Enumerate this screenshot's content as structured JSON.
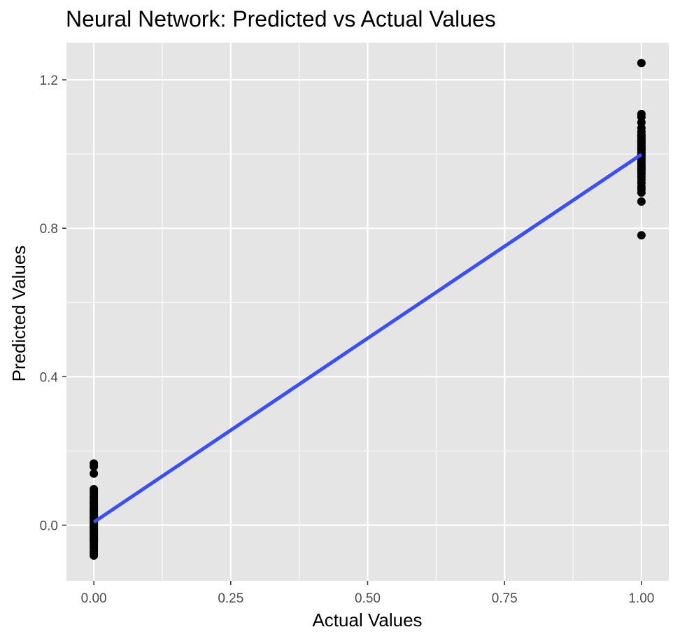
{
  "chart_data": {
    "type": "scatter",
    "title": "Neural Network: Predicted vs Actual Values",
    "xlabel": "Actual Values",
    "ylabel": "Predicted Values",
    "xlim": [
      -0.05,
      1.05
    ],
    "ylim": [
      -0.15,
      1.3
    ],
    "x_ticks": [
      0.0,
      0.25,
      0.5,
      0.75,
      1.0
    ],
    "x_tick_labels": [
      "0.00",
      "0.25",
      "0.50",
      "0.75",
      "1.00"
    ],
    "y_ticks": [
      0.0,
      0.4,
      0.8,
      1.2
    ],
    "y_tick_labels": [
      "0.0",
      "0.4",
      "0.8",
      "1.2"
    ],
    "grid": true,
    "legend": "none",
    "colors": {
      "panel": "#e5e5e5",
      "grid": "#ffffff",
      "points": "#000000",
      "fit_line": "#3a4efc",
      "tick_label": "#4d4d4d"
    },
    "series": [
      {
        "kind": "points",
        "x": [
          0,
          0,
          0,
          0,
          0,
          0,
          0,
          0,
          0,
          0,
          0,
          0,
          0,
          0,
          0,
          0,
          0,
          0,
          0,
          0,
          0,
          0,
          0,
          0,
          0,
          0,
          0,
          0,
          0,
          0,
          0,
          0,
          0,
          0,
          0,
          0,
          0,
          0,
          0,
          0,
          0,
          0,
          0,
          0,
          0,
          0,
          0,
          0,
          1,
          1,
          1,
          1,
          1,
          1,
          1,
          1,
          1,
          1,
          1,
          1,
          1,
          1,
          1,
          1,
          1,
          1,
          1,
          1,
          1,
          1,
          1,
          1,
          1,
          1,
          1,
          1,
          1,
          1,
          1,
          1,
          1,
          1,
          1,
          1,
          1,
          1,
          1,
          1,
          1,
          1
        ],
        "y": [
          0.166,
          0.158,
          0.139,
          0.097,
          0.091,
          0.085,
          0.078,
          0.072,
          0.066,
          0.06,
          0.055,
          0.05,
          0.046,
          0.042,
          0.038,
          0.034,
          0.03,
          0.026,
          0.022,
          0.018,
          0.014,
          0.01,
          0.006,
          0.002,
          -0.002,
          -0.006,
          -0.01,
          -0.014,
          -0.018,
          -0.022,
          -0.026,
          -0.03,
          -0.034,
          -0.038,
          -0.042,
          -0.047,
          -0.052,
          -0.058,
          -0.063,
          -0.07,
          -0.076,
          -0.082,
          0.0,
          0.02,
          0.04,
          0.06,
          -0.02,
          -0.04,
          1.245,
          1.108,
          1.1,
          1.085,
          1.07,
          1.06,
          1.052,
          1.045,
          1.04,
          1.035,
          1.03,
          1.025,
          1.02,
          1.015,
          1.01,
          1.005,
          1.0,
          0.995,
          0.99,
          0.985,
          0.98,
          0.975,
          0.97,
          0.965,
          0.96,
          0.955,
          0.95,
          0.945,
          0.938,
          0.93,
          0.922,
          0.912,
          0.905,
          0.896,
          0.872,
          0.781,
          1.012,
          1.032,
          0.998,
          0.962,
          1.048,
          1.018
        ]
      },
      {
        "kind": "fit_line",
        "x": [
          0,
          1
        ],
        "y": [
          0.008,
          0.999
        ]
      }
    ]
  }
}
